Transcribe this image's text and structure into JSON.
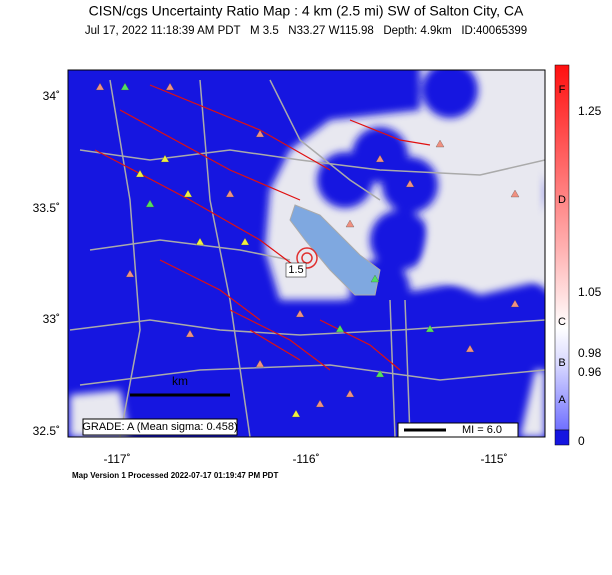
{
  "header": {
    "title": "CISN/cgs Uncertainty Ratio Map : 4 km (2.5 mi) SW of Salton City, CA",
    "subtitle": "Jul 17, 2022 11:18:39 AM PDT   M 3.5   N33.27 W115.98   Depth: 4.9km   ID:40065399"
  },
  "map": {
    "lat_labels": [
      "34˚",
      "33.5˚",
      "33˚",
      "32.5˚"
    ],
    "lon_labels": [
      "-117˚",
      "-116˚",
      "-115˚"
    ],
    "epicenter_label": "1.5",
    "scale_unit": "km",
    "grade": "GRADE: A (Mean sigma: 0.458)",
    "mi": "MI = 6.0"
  },
  "legend": {
    "values": [
      "1.25",
      "1.05",
      "0.98",
      "0.96",
      "0"
    ],
    "grades": [
      "F",
      "D",
      "C",
      "B",
      "A"
    ]
  },
  "footer": "Map Version 1 Processed 2022-07-17 01:19:47 PM PDT"
}
